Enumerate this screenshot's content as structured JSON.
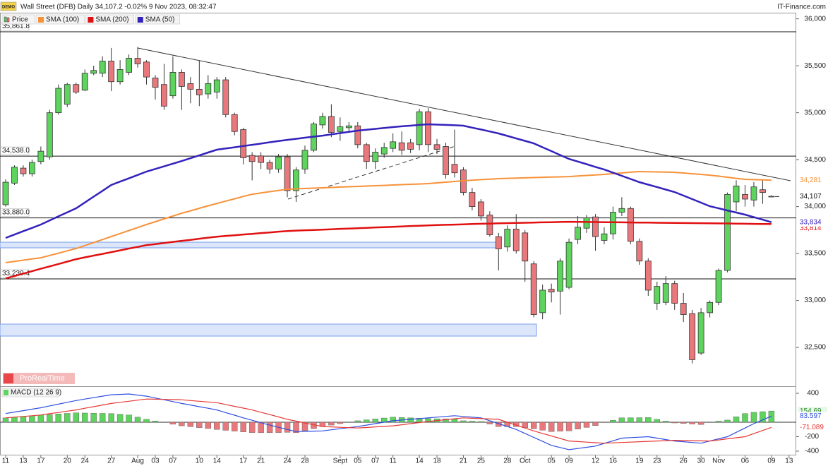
{
  "header": {
    "badge": "DEMO",
    "source": "IT-Finance.com",
    "brand": "ProRealTime"
  },
  "chart_data": [
    {
      "type": "candlestick",
      "title": "Wall Street (DFB) Daily 34,107.2 -0.02% 9 Nov 2023, 08:32:47",
      "price_name": "Price",
      "last_label": "34,107",
      "up_color": "#5ed35e",
      "down_color": "#e8787c",
      "categories": [
        "11",
        null,
        "13",
        null,
        "17",
        null,
        null,
        "20",
        null,
        "24",
        null,
        null,
        "27",
        null,
        null,
        "Aug",
        null,
        "03",
        null,
        "07",
        null,
        null,
        "10",
        null,
        "14",
        null,
        null,
        "17",
        null,
        "21",
        null,
        null,
        "24",
        null,
        "28",
        null,
        null,
        null,
        "Sept",
        null,
        "05",
        null,
        "07",
        null,
        "11",
        null,
        null,
        "14",
        null,
        "18",
        null,
        null,
        "21",
        null,
        "25",
        null,
        null,
        "28",
        null,
        "Oct",
        null,
        null,
        "05",
        null,
        "09",
        null,
        null,
        "12",
        null,
        "16",
        null,
        null,
        "19",
        null,
        "23",
        null,
        null,
        "26",
        null,
        "30",
        null,
        "Nov",
        null,
        null,
        "06",
        null,
        null,
        "09",
        null,
        "13"
      ],
      "open": [
        34020,
        34250,
        34410,
        34350,
        34480,
        34530,
        35000,
        35090,
        35300,
        35240,
        35420,
        35420,
        35550,
        35330,
        35430,
        35580,
        35540,
        35370,
        35300,
        35180,
        35430,
        35310,
        35250,
        35200,
        35220,
        35350,
        34980,
        34820,
        34545,
        34540,
        34470,
        34400,
        34530,
        34170,
        34400,
        34600,
        34870,
        34960,
        34800,
        34840,
        34860,
        34660,
        34480,
        34560,
        34620,
        34680,
        34680,
        34660,
        35010,
        34660,
        34640,
        34450,
        34390,
        34150,
        34050,
        33910,
        33680,
        33570,
        33760,
        33720,
        33390,
        32870,
        33120,
        33100,
        33140,
        33650,
        33770,
        33890,
        33640,
        33710,
        33940,
        33980,
        33630,
        33420,
        32970,
        32980,
        33180,
        32970,
        32860,
        32440,
        32870,
        32980,
        33320,
        34050,
        34130,
        34070,
        34180,
        34110,
        null,
        null
      ],
      "high": [
        34290,
        34440,
        34440,
        34500,
        34640,
        35030,
        35300,
        35320,
        35320,
        35460,
        35500,
        35600,
        35690,
        35560,
        35620,
        35700,
        35560,
        35400,
        35520,
        35600,
        35460,
        35380,
        35560,
        35400,
        35380,
        35380,
        35000,
        34840,
        34580,
        34580,
        34500,
        34560,
        34560,
        34420,
        34650,
        34900,
        35000,
        35090,
        34950,
        34900,
        34900,
        34680,
        34620,
        34680,
        34780,
        34800,
        34720,
        35040,
        35050,
        34720,
        34680,
        34820,
        34420,
        34200,
        34080,
        33950,
        33720,
        33800,
        33920,
        33750,
        33420,
        33170,
        33180,
        33450,
        33660,
        33900,
        33910,
        33920,
        33780,
        34000,
        34100,
        34000,
        33660,
        33450,
        33200,
        33260,
        33210,
        33080,
        32900,
        32920,
        33000,
        33340,
        34150,
        34280,
        34230,
        34260,
        34290,
        34120,
        null,
        null
      ],
      "low": [
        34000,
        34230,
        34320,
        34320,
        34450,
        34500,
        34980,
        35060,
        35200,
        35230,
        35400,
        35380,
        35230,
        35300,
        35400,
        35480,
        35300,
        35140,
        35030,
        35150,
        35030,
        35100,
        35070,
        35150,
        35150,
        34950,
        34760,
        34450,
        34280,
        34400,
        34350,
        34360,
        34100,
        34050,
        34350,
        34580,
        34830,
        34740,
        34700,
        34800,
        34620,
        34400,
        34400,
        34520,
        34580,
        34550,
        34570,
        34600,
        34580,
        34560,
        34300,
        34310,
        34120,
        33960,
        33850,
        33680,
        33320,
        33520,
        33500,
        33200,
        32820,
        32800,
        32980,
        32850,
        33120,
        33600,
        33720,
        33530,
        33600,
        33650,
        33900,
        33600,
        33380,
        33050,
        32900,
        32950,
        32900,
        32770,
        32330,
        32420,
        32820,
        32950,
        33300,
        33950,
        34000,
        34000,
        34030,
        34100,
        null,
        null
      ],
      "close": [
        34260,
        34420,
        34350,
        34470,
        34590,
        35000,
        35260,
        35300,
        35220,
        35420,
        35450,
        35550,
        35330,
        35460,
        35580,
        35520,
        35380,
        35270,
        35070,
        35430,
        35280,
        35250,
        35190,
        35310,
        35350,
        34980,
        34800,
        34520,
        34480,
        34470,
        34400,
        34530,
        34170,
        34390,
        34600,
        34880,
        34960,
        34790,
        34850,
        34860,
        34660,
        34480,
        34580,
        34630,
        34690,
        34600,
        34610,
        35010,
        34660,
        34610,
        34340,
        34360,
        34150,
        34000,
        33900,
        33700,
        33550,
        33760,
        33530,
        33420,
        32850,
        33110,
        33090,
        33420,
        33620,
        33780,
        33880,
        33680,
        33710,
        33940,
        33980,
        33630,
        33420,
        33110,
        33150,
        33180,
        32970,
        32850,
        32370,
        32870,
        32980,
        33320,
        34130,
        34220,
        34080,
        34210,
        34150,
        34107.2,
        null,
        null
      ],
      "series": [
        {
          "name": "SMA (100)",
          "color": "#f7923a",
          "last_label": "34,281",
          "values": [
            33403,
            33416,
            33429,
            33442,
            33455,
            33480,
            33504,
            33529,
            33553,
            33585,
            33617,
            33649,
            33681,
            33713,
            33745,
            33777,
            33809,
            33839,
            33869,
            33899,
            33929,
            33955,
            33982,
            34008,
            34034,
            34059,
            34083,
            34108,
            34132,
            34145,
            34159,
            34172,
            34185,
            34189,
            34193,
            34196,
            34200,
            34204,
            34208,
            34211,
            34215,
            34219,
            34223,
            34226,
            34230,
            34234,
            34238,
            34241,
            34245,
            34253,
            34260,
            34268,
            34275,
            34281,
            34287,
            34292,
            34298,
            34301,
            34304,
            34306,
            34309,
            34312,
            34315,
            34317,
            34320,
            34326,
            34332,
            34337,
            34343,
            34351,
            34358,
            34366,
            34373,
            34371,
            34369,
            34367,
            34365,
            34358,
            34350,
            34343,
            34335,
            34324,
            34313,
            34301,
            34290,
            34287,
            34284,
            34281,
            null,
            null
          ]
        },
        {
          "name": "SMA (200)",
          "color": "#e01010",
          "last_label": "33,814",
          "values": [
            33235,
            33261,
            33286,
            33312,
            33338,
            33363,
            33389,
            33414,
            33440,
            33459,
            33478,
            33496,
            33515,
            33534,
            33553,
            33571,
            33590,
            33601,
            33613,
            33624,
            33635,
            33646,
            33658,
            33669,
            33680,
            33688,
            33695,
            33703,
            33710,
            33718,
            33725,
            33733,
            33740,
            33744,
            33748,
            33751,
            33755,
            33759,
            33763,
            33766,
            33770,
            33774,
            33778,
            33781,
            33785,
            33789,
            33793,
            33796,
            33800,
            33803,
            33806,
            33808,
            33811,
            33814,
            33817,
            33819,
            33822,
            33824,
            33826,
            33828,
            33830,
            33832,
            33834,
            33836,
            33838,
            33837,
            33836,
            33835,
            33834,
            33833,
            33832,
            33831,
            33830,
            33829,
            33828,
            33827,
            33826,
            33825,
            33824,
            33823,
            33822,
            33821,
            33820,
            33819,
            33817,
            33816,
            33815,
            33814,
            null,
            null
          ]
        },
        {
          "name": "SMA (50)",
          "color": "#3322bb",
          "last_label": "33,834",
          "values": [
            33666,
            33702,
            33738,
            33773,
            33809,
            33852,
            33896,
            33939,
            33982,
            34044,
            34106,
            34168,
            34230,
            34266,
            34301,
            34337,
            34373,
            34401,
            34429,
            34457,
            34485,
            34515,
            34545,
            34576,
            34606,
            34619,
            34632,
            34645,
            34658,
            34671,
            34685,
            34698,
            34711,
            34722,
            34734,
            34745,
            34756,
            34769,
            34783,
            34796,
            34809,
            34819,
            34828,
            34838,
            34847,
            34855,
            34862,
            34870,
            34877,
            34873,
            34870,
            34866,
            34862,
            34841,
            34821,
            34800,
            34779,
            34753,
            34726,
            34700,
            34673,
            34632,
            34591,
            34549,
            34508,
            34480,
            34452,
            34423,
            34395,
            34361,
            34328,
            34294,
            34260,
            34234,
            34208,
            34181,
            34155,
            34117,
            34080,
            34042,
            34004,
            33982,
            33959,
            33937,
            33914,
            33887,
            33861,
            33834,
            null,
            null
          ]
        }
      ],
      "levels": [
        {
          "value": 35861.8,
          "label": "35,861.8"
        },
        {
          "value": 34538.0,
          "label": "34,538.0"
        },
        {
          "value": 33880.0,
          "label": "33,880.0"
        },
        {
          "value": 33230.4,
          "label": "33,230.4"
        }
      ],
      "ylim": [
        32087,
        36065
      ],
      "yticks": [
        {
          "value": 32500,
          "label": "32,500"
        },
        {
          "value": 33000,
          "label": "33,000"
        },
        {
          "value": 33500,
          "label": "33,500"
        },
        {
          "value": 34000,
          "label": "34,000"
        },
        {
          "value": 34500,
          "label": "34,500"
        },
        {
          "value": 35000,
          "label": "35,000"
        },
        {
          "value": 35500,
          "label": "35,500"
        },
        {
          "value": 36000,
          "label": "36,000"
        }
      ]
    },
    {
      "type": "macd",
      "title": "MACD (12 26 9)",
      "histogram": {
        "up_color": "#5ed35e",
        "down_color": "#e8787c",
        "values": [
          60,
          70,
          80,
          90,
          100,
          107,
          115,
          122,
          130,
          127,
          125,
          122,
          120,
          110,
          100,
          70,
          40,
          17,
          -5,
          -28,
          -50,
          -62,
          -75,
          -87,
          -100,
          -112,
          -123,
          -135,
          -143,
          -145,
          -145,
          -143,
          -140,
          -145,
          -117,
          -88,
          -60,
          -40,
          -20,
          0,
          20,
          33,
          45,
          58,
          70,
          65,
          60,
          55,
          50,
          47,
          45,
          42,
          20,
          15,
          10,
          -25,
          -60,
          -60,
          -60,
          -75,
          -90,
          -110,
          -130,
          -125,
          -120,
          -95,
          -72,
          -47,
          -3,
          28,
          60,
          62,
          63,
          65,
          40,
          15,
          -10,
          -17,
          -25,
          -32,
          0,
          15,
          30,
          75,
          120,
          137,
          146,
          154.69,
          null,
          null
        ]
      },
      "series": [
        {
          "color": "#2f4fe0",
          "values": [
            120,
            140,
            160,
            180,
            200,
            225,
            250,
            275,
            300,
            320,
            340,
            360,
            380,
            385,
            390,
            375,
            360,
            335,
            310,
            285,
            260,
            238,
            215,
            193,
            170,
            133,
            97,
            60,
            27,
            -7,
            -40,
            -70,
            -100,
            -130,
            -127,
            -123,
            -120,
            -105,
            -90,
            -75,
            -60,
            -40,
            -20,
            0,
            20,
            30,
            40,
            50,
            60,
            70,
            80,
            90,
            80,
            70,
            60,
            20,
            -20,
            -60,
            -100,
            -155,
            -210,
            -265,
            -320,
            -350,
            -380,
            -363,
            -347,
            -330,
            -293,
            -257,
            -220,
            -213,
            -207,
            -200,
            -220,
            -240,
            -260,
            -270,
            -280,
            -290,
            -260,
            -230,
            -200,
            -140,
            -80,
            -20,
            32,
            83.597,
            null,
            null
          ]
        },
        {
          "color": "#e53935",
          "values": [
            60,
            70,
            80,
            90,
            100,
            118,
            135,
            153,
            170,
            193,
            215,
            238,
            260,
            275,
            290,
            305,
            320,
            318,
            315,
            313,
            310,
            300,
            290,
            280,
            270,
            245,
            220,
            195,
            170,
            138,
            105,
            73,
            40,
            15,
            -10,
            -35,
            -60,
            -65,
            -70,
            -75,
            -80,
            -73,
            -65,
            -58,
            -50,
            -35,
            -20,
            -5,
            10,
            23,
            35,
            48,
            60,
            55,
            50,
            45,
            40,
            0,
            -40,
            -80,
            -120,
            -155,
            -190,
            -225,
            -260,
            -268,
            -275,
            -283,
            -290,
            -285,
            -280,
            -275,
            -270,
            -265,
            -260,
            -255,
            -250,
            -253,
            -255,
            -258,
            -260,
            -245,
            -230,
            -215,
            -200,
            -157,
            -114,
            -71.089,
            null,
            null
          ]
        }
      ],
      "ylim": [
        -459,
        488
      ],
      "yticks": [
        400,
        -200,
        -400
      ]
    }
  ]
}
